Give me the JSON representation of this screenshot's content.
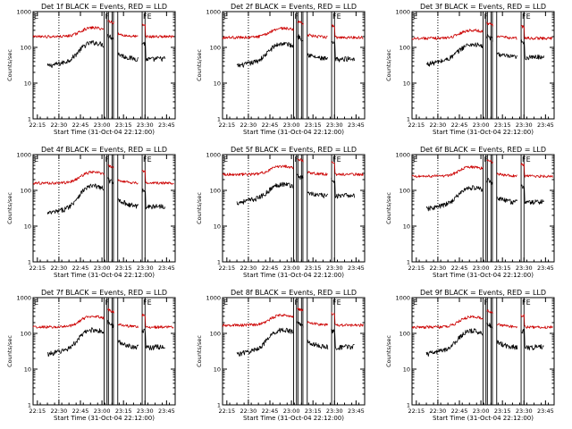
{
  "page": {
    "background": "#ffffff",
    "colors": {
      "events": "#000000",
      "lld": "#cc0000",
      "axis": "#000000"
    }
  },
  "chart_data": [
    {
      "type": "line",
      "title": "Det 1f BLACK = Events, RED = LLD",
      "xlabel": "Start Time (31-Oct-04 22:12:00)",
      "ylabel": "Counts/sec",
      "y_scale": "log",
      "ylim": [
        1,
        1000
      ],
      "xlim_min": [
        0,
        99
      ],
      "x_ticks_min": [
        3,
        18,
        33,
        48,
        63,
        78,
        93
      ],
      "x_tick_labels": [
        "22:15",
        "22:30",
        "22:45",
        "23:00",
        "23:15",
        "23:30",
        "23:45"
      ],
      "y_ticks": [
        1,
        10,
        100,
        1000
      ],
      "y_tick_labels": [
        "1",
        "10",
        "100",
        "1000"
      ],
      "flags": [
        {
          "t": 0,
          "label": "E"
        },
        {
          "t": 49.5,
          "label": "F"
        },
        {
          "t": 76,
          "label": "FE"
        }
      ],
      "vlines_min": [
        18,
        49.5,
        51.5,
        52.5,
        55,
        56,
        59,
        76,
        78
      ],
      "lld_base": 200,
      "lld_peak": 390,
      "events_base": 40,
      "events_peak": 150,
      "grid": false,
      "series": [
        {
          "name": "BLACK = Events",
          "color": "#000000",
          "x_range": [
            10,
            92
          ]
        },
        {
          "name": "RED = LLD",
          "color": "#cc0000",
          "x_range": [
            0,
            98
          ]
        }
      ]
    },
    {
      "type": "line",
      "title": "Det 2f BLACK = Events, RED = LLD",
      "xlabel": "Start Time (31-Oct-04 22:12:00)",
      "ylabel": "Counts/sec",
      "y_scale": "log",
      "ylim": [
        1,
        1000
      ],
      "xlim_min": [
        0,
        99
      ],
      "x_ticks_min": [
        3,
        18,
        33,
        48,
        63,
        78,
        93
      ],
      "x_tick_labels": [
        "22:15",
        "22:30",
        "22:45",
        "23:00",
        "23:15",
        "23:30",
        "23:45"
      ],
      "y_ticks": [
        1,
        10,
        100,
        1000
      ],
      "y_tick_labels": [
        "1",
        "10",
        "100",
        "1000"
      ],
      "flags": [
        {
          "t": 0,
          "label": "E"
        },
        {
          "t": 49.5,
          "label": "F"
        },
        {
          "t": 76,
          "label": "FE"
        }
      ],
      "vlines_min": [
        18,
        49.5,
        51.5,
        52.5,
        55,
        56,
        59,
        76,
        78
      ],
      "lld_base": 190,
      "lld_peak": 380,
      "events_base": 40,
      "events_peak": 140,
      "grid": false,
      "series": [
        {
          "name": "BLACK = Events",
          "color": "#000000",
          "x_range": [
            10,
            92
          ]
        },
        {
          "name": "RED = LLD",
          "color": "#cc0000",
          "x_range": [
            0,
            98
          ]
        }
      ]
    },
    {
      "type": "line",
      "title": "Det 3f BLACK = Events, RED = LLD",
      "xlabel": "Start Time (31-Oct-04 22:12:00)",
      "ylabel": "Counts/sec",
      "y_scale": "log",
      "ylim": [
        1,
        1000
      ],
      "xlim_min": [
        0,
        99
      ],
      "x_ticks_min": [
        3,
        18,
        33,
        48,
        63,
        78,
        93
      ],
      "x_tick_labels": [
        "22:15",
        "22:30",
        "22:45",
        "23:00",
        "23:15",
        "23:30",
        "23:45"
      ],
      "y_ticks": [
        1,
        10,
        100,
        1000
      ],
      "y_tick_labels": [
        "1",
        "10",
        "100",
        "1000"
      ],
      "flags": [
        {
          "t": 0,
          "label": "E"
        },
        {
          "t": 49.5,
          "label": "F"
        },
        {
          "t": 76,
          "label": "FE"
        }
      ],
      "vlines_min": [
        18,
        49.5,
        51.5,
        52.5,
        55,
        56,
        59,
        76,
        78
      ],
      "lld_base": 180,
      "lld_peak": 330,
      "events_base": 45,
      "events_peak": 130,
      "grid": false,
      "series": [
        {
          "name": "BLACK = Events",
          "color": "#000000",
          "x_range": [
            10,
            92
          ]
        },
        {
          "name": "RED = LLD",
          "color": "#cc0000",
          "x_range": [
            0,
            98
          ]
        }
      ]
    },
    {
      "type": "line",
      "title": "Det 4f BLACK = Events, RED = LLD",
      "xlabel": "Start Time (31-Oct-04 22:12:00)",
      "ylabel": "Counts/sec",
      "y_scale": "log",
      "ylim": [
        1,
        1000
      ],
      "xlim_min": [
        0,
        99
      ],
      "x_ticks_min": [
        3,
        18,
        33,
        48,
        63,
        78,
        93
      ],
      "x_tick_labels": [
        "22:15",
        "22:30",
        "22:45",
        "23:00",
        "23:15",
        "23:30",
        "23:45"
      ],
      "y_ticks": [
        1,
        10,
        100,
        1000
      ],
      "y_tick_labels": [
        "1",
        "10",
        "100",
        "1000"
      ],
      "flags": [
        {
          "t": 0,
          "label": "E"
        },
        {
          "t": 49.5,
          "label": "F"
        },
        {
          "t": 76,
          "label": "FE"
        }
      ],
      "vlines_min": [
        18,
        49.5,
        51.5,
        52.5,
        55,
        56,
        59,
        76,
        78
      ],
      "lld_base": 160,
      "lld_peak": 360,
      "events_base": 30,
      "events_peak": 150,
      "grid": false,
      "series": [
        {
          "name": "BLACK = Events",
          "color": "#000000",
          "x_range": [
            10,
            92
          ]
        },
        {
          "name": "RED = LLD",
          "color": "#cc0000",
          "x_range": [
            0,
            98
          ]
        }
      ]
    },
    {
      "type": "line",
      "title": "Det 5f BLACK = Events, RED = LLD",
      "xlabel": "Start Time (31-Oct-04 22:12:00)",
      "ylabel": "Counts/sec",
      "y_scale": "log",
      "ylim": [
        1,
        1000
      ],
      "xlim_min": [
        0,
        99
      ],
      "x_ticks_min": [
        3,
        18,
        33,
        48,
        63,
        78,
        93
      ],
      "x_tick_labels": [
        "22:15",
        "22:30",
        "22:45",
        "23:00",
        "23:15",
        "23:30",
        "23:45"
      ],
      "y_ticks": [
        1,
        10,
        100,
        1000
      ],
      "y_tick_labels": [
        "1",
        "10",
        "100",
        "1000"
      ],
      "flags": [
        {
          "t": 0,
          "label": "E"
        },
        {
          "t": 49.5,
          "label": "F"
        },
        {
          "t": 76,
          "label": "FE"
        }
      ],
      "vlines_min": [
        18,
        49.5,
        51.5,
        52.5,
        55,
        56,
        59,
        76,
        78
      ],
      "lld_base": 280,
      "lld_peak": 520,
      "events_base": 60,
      "events_peak": 160,
      "grid": false,
      "series": [
        {
          "name": "BLACK = Events",
          "color": "#000000",
          "x_range": [
            10,
            92
          ]
        },
        {
          "name": "RED = LLD",
          "color": "#cc0000",
          "x_range": [
            0,
            98
          ]
        }
      ]
    },
    {
      "type": "line",
      "title": "Det 6f BLACK = Events, RED = LLD",
      "xlabel": "Start Time (31-Oct-04 22:12:00)",
      "ylabel": "Counts/sec",
      "y_scale": "log",
      "ylim": [
        1,
        1000
      ],
      "xlim_min": [
        0,
        99
      ],
      "x_ticks_min": [
        3,
        18,
        33,
        48,
        63,
        78,
        93
      ],
      "x_tick_labels": [
        "22:15",
        "22:30",
        "22:45",
        "23:00",
        "23:15",
        "23:30",
        "23:45"
      ],
      "y_ticks": [
        1,
        10,
        100,
        1000
      ],
      "y_tick_labels": [
        "1",
        "10",
        "100",
        "1000"
      ],
      "flags": [
        {
          "t": 0,
          "label": "E"
        },
        {
          "t": 49.5,
          "label": "F"
        },
        {
          "t": 76,
          "label": "FE"
        }
      ],
      "vlines_min": [
        18,
        49.5,
        51.5,
        52.5,
        55,
        56,
        59,
        76,
        78
      ],
      "lld_base": 250,
      "lld_peak": 500,
      "events_base": 40,
      "events_peak": 130,
      "grid": false,
      "series": [
        {
          "name": "BLACK = Events",
          "color": "#000000",
          "x_range": [
            10,
            92
          ]
        },
        {
          "name": "RED = LLD",
          "color": "#cc0000",
          "x_range": [
            0,
            98
          ]
        }
      ]
    },
    {
      "type": "line",
      "title": "Det 7f BLACK = Events, RED = LLD",
      "xlabel": "Start Time (31-Oct-04 22:12:00)",
      "ylabel": "Counts/sec",
      "y_scale": "log",
      "ylim": [
        1,
        1000
      ],
      "xlim_min": [
        0,
        99
      ],
      "x_ticks_min": [
        3,
        18,
        33,
        48,
        63,
        78,
        93
      ],
      "x_tick_labels": [
        "22:15",
        "22:30",
        "22:45",
        "23:00",
        "23:15",
        "23:30",
        "23:45"
      ],
      "y_ticks": [
        1,
        10,
        100,
        1000
      ],
      "y_tick_labels": [
        "1",
        "10",
        "100",
        "1000"
      ],
      "flags": [
        {
          "t": 0,
          "label": "E"
        },
        {
          "t": 49.5,
          "label": "F"
        },
        {
          "t": 76,
          "label": "FE"
        }
      ],
      "vlines_min": [
        18,
        49.5,
        51.5,
        52.5,
        55,
        56,
        59,
        76,
        78
      ],
      "lld_base": 150,
      "lld_peak": 340,
      "events_base": 35,
      "events_peak": 140,
      "grid": false,
      "series": [
        {
          "name": "BLACK = Events",
          "color": "#000000",
          "x_range": [
            10,
            92
          ]
        },
        {
          "name": "RED = LLD",
          "color": "#cc0000",
          "x_range": [
            0,
            98
          ]
        }
      ]
    },
    {
      "type": "line",
      "title": "Det 8f BLACK = Events, RED = LLD",
      "xlabel": "Start Time (31-Oct-04 22:12:00)",
      "ylabel": "Counts/sec",
      "y_scale": "log",
      "ylim": [
        1,
        1000
      ],
      "xlim_min": [
        0,
        99
      ],
      "x_ticks_min": [
        3,
        18,
        33,
        48,
        63,
        78,
        93
      ],
      "x_tick_labels": [
        "22:15",
        "22:30",
        "22:45",
        "23:00",
        "23:15",
        "23:30",
        "23:45"
      ],
      "y_ticks": [
        1,
        10,
        100,
        1000
      ],
      "y_tick_labels": [
        "1",
        "10",
        "100",
        "1000"
      ],
      "flags": [
        {
          "t": 0,
          "label": "E"
        },
        {
          "t": 49.5,
          "label": "F"
        },
        {
          "t": 76,
          "label": "FE"
        }
      ],
      "vlines_min": [
        18,
        49.5,
        51.5,
        52.5,
        55,
        56,
        59,
        76,
        78
      ],
      "lld_base": 170,
      "lld_peak": 360,
      "events_base": 35,
      "events_peak": 140,
      "grid": false,
      "series": [
        {
          "name": "BLACK = Events",
          "color": "#000000",
          "x_range": [
            10,
            92
          ]
        },
        {
          "name": "RED = LLD",
          "color": "#cc0000",
          "x_range": [
            0,
            98
          ]
        }
      ]
    },
    {
      "type": "line",
      "title": "Det 9f BLACK = Events, RED = LLD",
      "xlabel": "Start Time (31-Oct-04 22:12:00)",
      "ylabel": "Counts/sec",
      "y_scale": "log",
      "ylim": [
        1,
        1000
      ],
      "xlim_min": [
        0,
        99
      ],
      "x_ticks_min": [
        3,
        18,
        33,
        48,
        63,
        78,
        93
      ],
      "x_tick_labels": [
        "22:15",
        "22:30",
        "22:45",
        "23:00",
        "23:15",
        "23:30",
        "23:45"
      ],
      "y_ticks": [
        1,
        10,
        100,
        1000
      ],
      "y_tick_labels": [
        "1",
        "10",
        "100",
        "1000"
      ],
      "flags": [
        {
          "t": 0,
          "label": "E"
        },
        {
          "t": 49.5,
          "label": "F"
        },
        {
          "t": 76,
          "label": "FE"
        }
      ],
      "vlines_min": [
        18,
        49.5,
        51.5,
        52.5,
        55,
        56,
        59,
        76,
        78
      ],
      "lld_base": 150,
      "lld_peak": 320,
      "events_base": 35,
      "events_peak": 130,
      "grid": false,
      "series": [
        {
          "name": "BLACK = Events",
          "color": "#000000",
          "x_range": [
            10,
            92
          ]
        },
        {
          "name": "RED = LLD",
          "color": "#cc0000",
          "x_range": [
            0,
            98
          ]
        }
      ]
    }
  ]
}
